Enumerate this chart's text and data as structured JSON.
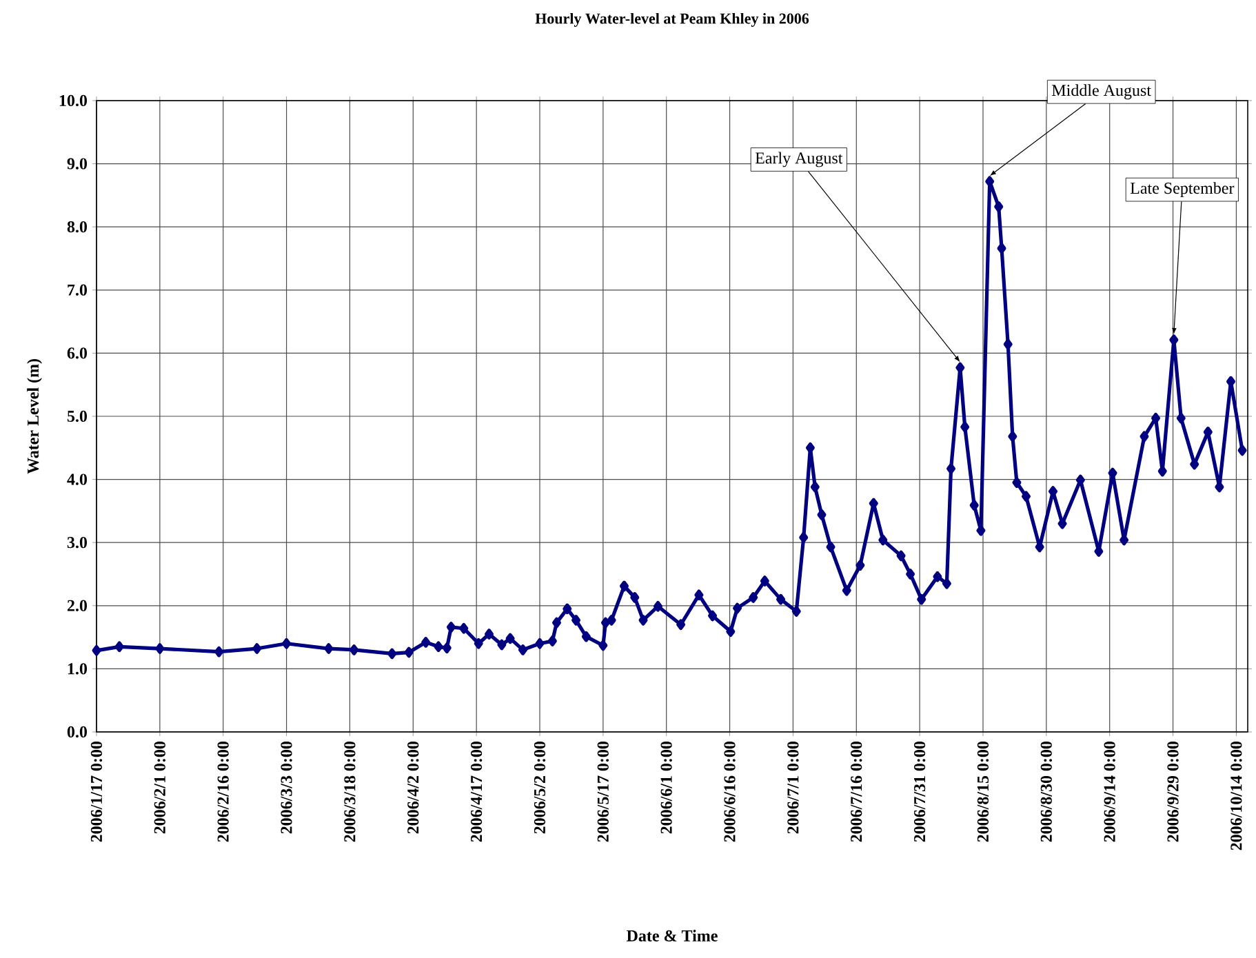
{
  "chart_data": {
    "type": "line",
    "title": "Hourly Water-level at Peam Khley in 2006",
    "xlabel": "Date & Time",
    "ylabel": "Water Level (m)",
    "x": [
      "2006-01-17",
      "2006-01-22T10:00",
      "2006-02-01",
      "2006-02-15",
      "2006-02-24",
      "2006-03-03",
      "2006-03-13",
      "2006-03-19",
      "2006-03-28",
      "2006-04-01",
      "2006-04-05",
      "2006-04-08",
      "2006-04-10",
      "2006-04-11",
      "2006-04-14",
      "2006-04-17T12:00",
      "2006-04-20",
      "2006-04-23",
      "2006-04-25",
      "2006-04-28",
      "2006-05-02",
      "2006-05-05",
      "2006-05-06",
      "2006-05-08T12:00",
      "2006-05-10T14:00",
      "2006-05-13",
      "2006-05-17",
      "2006-05-17T14:00",
      "2006-05-19",
      "2006-05-22",
      "2006-05-24T12:00",
      "2006-05-26T12:00",
      "2006-05-30",
      "2006-06-04T10:00",
      "2006-06-08T17:00",
      "2006-06-11T22:00",
      "2006-06-16T05:00",
      "2006-06-17T19:00",
      "2006-06-21T14:00",
      "2006-06-24T07:00",
      "2006-06-28T02:00",
      "2006-07-01T19:00",
      "2006-07-03T12:00",
      "2006-07-05T02:00",
      "2006-07-06T05:00",
      "2006-07-07T19:00",
      "2006-07-09T22:00",
      "2006-07-13T17:00",
      "2006-07-16T22:00",
      "2006-07-20T02:00",
      "2006-07-22T07:00",
      "2006-07-26T14:00",
      "2006-07-28T19:00",
      "2006-07-31T10:00",
      "2006-08-04T05:00",
      "2006-08-06T10:00",
      "2006-08-07T10:00",
      "2006-08-09T14:00",
      "2006-08-10T17:00",
      "2006-08-12T22:00",
      "2006-08-14T12:00",
      "2006-08-16T14:00",
      "2006-08-18T17:00",
      "2006-08-19T10:00",
      "2006-08-20T22:00",
      "2006-08-22",
      "2006-08-23",
      "2006-08-25T05:00",
      "2006-08-28T10:00",
      "2006-08-31T14:00",
      "2006-09-02T19:00",
      "2006-09-07T02:00",
      "2006-09-11T10:00",
      "2006-09-14T17:00",
      "2006-09-17T10:00",
      "2006-09-22T05:00",
      "2006-09-24T22:00",
      "2006-09-26T12:00",
      "2006-09-29T05:00",
      "2006-09-30T22:00",
      "2006-10-04T02:00",
      "2006-10-07T07:00",
      "2006-10-10",
      "2006-10-12T17:00",
      "2006-10-15T10:00"
    ],
    "values": [
      1.29,
      1.35,
      1.32,
      1.27,
      1.32,
      1.4,
      1.32,
      1.3,
      1.24,
      1.26,
      1.42,
      1.35,
      1.33,
      1.66,
      1.64,
      1.4,
      1.55,
      1.38,
      1.48,
      1.3,
      1.4,
      1.44,
      1.73,
      1.95,
      1.77,
      1.51,
      1.37,
      1.73,
      1.77,
      2.31,
      2.13,
      1.77,
      1.99,
      1.7,
      2.17,
      1.84,
      1.59,
      1.96,
      2.13,
      2.39,
      2.1,
      1.91,
      3.08,
      4.5,
      3.88,
      3.44,
      2.93,
      2.24,
      2.64,
      3.62,
      3.04,
      2.79,
      2.5,
      2.1,
      2.46,
      2.35,
      4.17,
      5.77,
      4.83,
      3.59,
      3.19,
      8.72,
      8.32,
      7.66,
      6.14,
      4.68,
      3.95,
      3.73,
      2.93,
      3.81,
      3.3,
      3.99,
      2.86,
      4.1,
      3.04,
      4.68,
      4.97,
      4.13,
      6.21,
      4.97,
      4.24,
      4.75,
      3.88,
      5.55,
      4.46
    ],
    "color": "#000080",
    "marker": "diamond",
    "line_style": "solid",
    "grid": true,
    "xlim": [
      "2006-01-17",
      "2006-10-16T17:00"
    ],
    "ylim": [
      0,
      10
    ],
    "xticks": [
      {
        "value": "2006-01-17",
        "label": "2006/1/17 0:00"
      },
      {
        "value": "2006-02-01",
        "label": "2006/2/1 0:00"
      },
      {
        "value": "2006-02-16",
        "label": "2006/2/16 0:00"
      },
      {
        "value": "2006-03-03",
        "label": "2006/3/3 0:00"
      },
      {
        "value": "2006-03-18",
        "label": "2006/3/18 0:00"
      },
      {
        "value": "2006-04-02",
        "label": "2006/4/2 0:00"
      },
      {
        "value": "2006-04-17",
        "label": "2006/4/17 0:00"
      },
      {
        "value": "2006-05-02",
        "label": "2006/5/2 0:00"
      },
      {
        "value": "2006-05-17",
        "label": "2006/5/17 0:00"
      },
      {
        "value": "2006-06-01",
        "label": "2006/6/1 0:00"
      },
      {
        "value": "2006-06-16",
        "label": "2006/6/16 0:00"
      },
      {
        "value": "2006-07-01",
        "label": "2006/7/1 0:00"
      },
      {
        "value": "2006-07-16",
        "label": "2006/7/16 0:00"
      },
      {
        "value": "2006-07-31",
        "label": "2006/7/31 0:00"
      },
      {
        "value": "2006-08-15",
        "label": "2006/8/15 0:00"
      },
      {
        "value": "2006-08-30",
        "label": "2006/8/30 0:00"
      },
      {
        "value": "2006-09-14",
        "label": "2006/9/14 0:00"
      },
      {
        "value": "2006-09-29",
        "label": "2006/9/29 0:00"
      },
      {
        "value": "2006-10-14",
        "label": "2006/10/14 0:00"
      }
    ],
    "yticks": [
      {
        "value": 0,
        "label": "0.0"
      },
      {
        "value": 1,
        "label": "1.0"
      },
      {
        "value": 2,
        "label": "2.0"
      },
      {
        "value": 3,
        "label": "3.0"
      },
      {
        "value": 4,
        "label": "4.0"
      },
      {
        "value": 5,
        "label": "5.0"
      },
      {
        "value": 6,
        "label": "6.0"
      },
      {
        "value": 7,
        "label": "7.0"
      },
      {
        "value": 8,
        "label": "8.0"
      },
      {
        "value": 9,
        "label": "9.0"
      },
      {
        "value": 10,
        "label": "10.0"
      }
    ],
    "annotations": [
      {
        "text": "Early August",
        "x": "2006-08-09T14:00",
        "y": 5.77
      },
      {
        "text": "Middle August",
        "x": "2006-08-16T14:00",
        "y": 8.72
      },
      {
        "text": "Late September",
        "x": "2006-09-29T05:00",
        "y": 6.21
      }
    ]
  }
}
